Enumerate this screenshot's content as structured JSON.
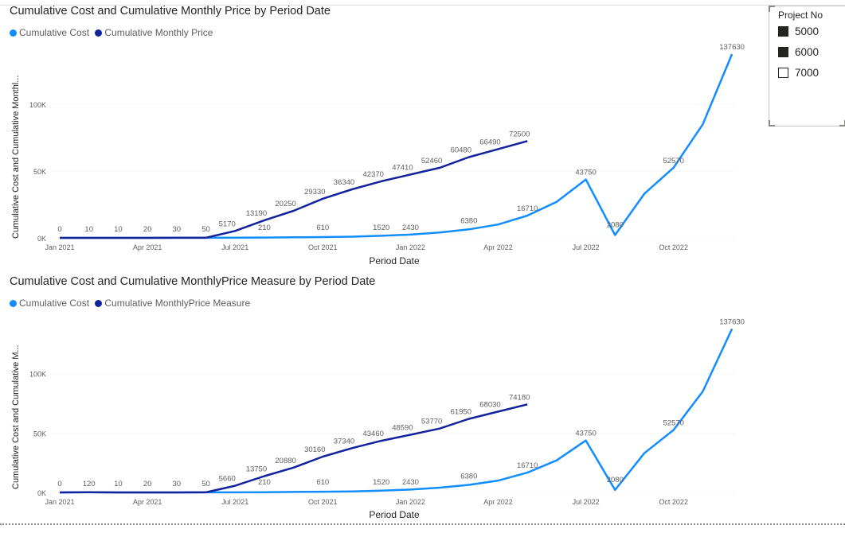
{
  "chart_data": [
    {
      "type": "line",
      "title": "Cumulative Cost and Cumulative Monthly Price by Period Date",
      "xlabel": "Period Date",
      "ylabel": "Cumulative Cost and Cumulative Monthl...",
      "x_tick_labels": [
        "Jan 2021",
        "Apr 2021",
        "Jul 2021",
        "Oct 2021",
        "Jan 2022",
        "Apr 2022",
        "Jul 2022",
        "Oct 2022"
      ],
      "y_tick_labels": [
        "0K",
        "50K",
        "100K"
      ],
      "ylim": [
        0,
        140000
      ],
      "grid": true,
      "legend_position": "top-left",
      "series": [
        {
          "name": "Cumulative Cost",
          "color": "#118DFF",
          "points": [
            {
              "x": "2021-01",
              "y": 0
            },
            {
              "x": "2021-02",
              "y": 10
            },
            {
              "x": "2021-03",
              "y": 10
            },
            {
              "x": "2021-04",
              "y": 20
            },
            {
              "x": "2021-05",
              "y": 30
            },
            {
              "x": "2021-06",
              "y": 50
            },
            {
              "x": "2021-07",
              "y": 100
            },
            {
              "x": "2021-08",
              "y": 210
            },
            {
              "x": "2021-09",
              "y": 400
            },
            {
              "x": "2021-10",
              "y": 610
            },
            {
              "x": "2021-11",
              "y": 900
            },
            {
              "x": "2021-12",
              "y": 1520
            },
            {
              "x": "2022-01",
              "y": 2430
            },
            {
              "x": "2022-02",
              "y": 4000
            },
            {
              "x": "2022-03",
              "y": 6380
            },
            {
              "x": "2022-04",
              "y": 10000
            },
            {
              "x": "2022-05",
              "y": 16710
            },
            {
              "x": "2022-06",
              "y": 27000
            },
            {
              "x": "2022-07",
              "y": 43750
            },
            {
              "x": "2022-08",
              "y": 2080
            },
            {
              "x": "2022-09",
              "y": 33000
            },
            {
              "x": "2022-10",
              "y": 52570
            },
            {
              "x": "2022-11",
              "y": 85000
            },
            {
              "x": "2022-12",
              "y": 137630
            }
          ],
          "data_labels": [
            {
              "x": "2021-01",
              "y": 0
            },
            {
              "x": "2021-02",
              "y": 10
            },
            {
              "x": "2021-03",
              "y": 10
            },
            {
              "x": "2021-04",
              "y": 20
            },
            {
              "x": "2021-05",
              "y": 30
            },
            {
              "x": "2021-06",
              "y": 50
            },
            {
              "x": "2021-08",
              "y": 210
            },
            {
              "x": "2021-10",
              "y": 610
            },
            {
              "x": "2021-12",
              "y": 1520
            },
            {
              "x": "2022-01",
              "y": 2430
            },
            {
              "x": "2022-03",
              "y": 6380
            },
            {
              "x": "2022-05",
              "y": 16710
            },
            {
              "x": "2022-07",
              "y": 43750
            },
            {
              "x": "2022-08",
              "y": 2080
            },
            {
              "x": "2022-10",
              "y": 52570
            },
            {
              "x": "2022-12",
              "y": 137630
            }
          ]
        },
        {
          "name": "Cumulative Monthly Price",
          "color": "#12239E",
          "points": [
            {
              "x": "2021-01",
              "y": 0
            },
            {
              "x": "2021-02",
              "y": 10
            },
            {
              "x": "2021-03",
              "y": 10
            },
            {
              "x": "2021-04",
              "y": 20
            },
            {
              "x": "2021-05",
              "y": 30
            },
            {
              "x": "2021-06",
              "y": 50
            },
            {
              "x": "2021-07",
              "y": 5170
            },
            {
              "x": "2021-08",
              "y": 13190
            },
            {
              "x": "2021-09",
              "y": 20250
            },
            {
              "x": "2021-10",
              "y": 29330
            },
            {
              "x": "2021-11",
              "y": 36340
            },
            {
              "x": "2021-12",
              "y": 42370
            },
            {
              "x": "2022-01",
              "y": 47410
            },
            {
              "x": "2022-02",
              "y": 52460
            },
            {
              "x": "2022-03",
              "y": 60480
            },
            {
              "x": "2022-04",
              "y": 66490
            },
            {
              "x": "2022-05",
              "y": 72500
            }
          ],
          "data_labels": [
            {
              "x": "2021-07",
              "y": 5170
            },
            {
              "x": "2021-08",
              "y": 13190
            },
            {
              "x": "2021-09",
              "y": 20250
            },
            {
              "x": "2021-10",
              "y": 29330
            },
            {
              "x": "2021-11",
              "y": 36340
            },
            {
              "x": "2021-12",
              "y": 42370
            },
            {
              "x": "2022-01",
              "y": 47410
            },
            {
              "x": "2022-02",
              "y": 52460
            },
            {
              "x": "2022-03",
              "y": 60480
            },
            {
              "x": "2022-04",
              "y": 66490
            },
            {
              "x": "2022-05",
              "y": 72500
            }
          ]
        }
      ]
    },
    {
      "type": "line",
      "title": "Cumulative Cost and Cumulative MonthlyPrice Measure by Period Date",
      "xlabel": "Period Date",
      "ylabel": "Cumulative Cost and Cumulative M...",
      "x_tick_labels": [
        "Jan 2021",
        "Apr 2021",
        "Jul 2021",
        "Oct 2021",
        "Jan 2022",
        "Apr 2022",
        "Jul 2022",
        "Oct 2022"
      ],
      "y_tick_labels": [
        "0K",
        "50K",
        "100K"
      ],
      "ylim": [
        0,
        140000
      ],
      "grid": true,
      "legend_position": "top-left",
      "series": [
        {
          "name": "Cumulative Cost",
          "color": "#118DFF",
          "points": [
            {
              "x": "2021-01",
              "y": 0
            },
            {
              "x": "2021-02",
              "y": 120
            },
            {
              "x": "2021-03",
              "y": 10
            },
            {
              "x": "2021-04",
              "y": 20
            },
            {
              "x": "2021-05",
              "y": 30
            },
            {
              "x": "2021-06",
              "y": 50
            },
            {
              "x": "2021-07",
              "y": 100
            },
            {
              "x": "2021-08",
              "y": 210
            },
            {
              "x": "2021-09",
              "y": 400
            },
            {
              "x": "2021-10",
              "y": 610
            },
            {
              "x": "2021-11",
              "y": 900
            },
            {
              "x": "2021-12",
              "y": 1520
            },
            {
              "x": "2022-01",
              "y": 2430
            },
            {
              "x": "2022-02",
              "y": 4000
            },
            {
              "x": "2022-03",
              "y": 6380
            },
            {
              "x": "2022-04",
              "y": 10000
            },
            {
              "x": "2022-05",
              "y": 16710
            },
            {
              "x": "2022-06",
              "y": 27000
            },
            {
              "x": "2022-07",
              "y": 43750
            },
            {
              "x": "2022-08",
              "y": 2080
            },
            {
              "x": "2022-09",
              "y": 33000
            },
            {
              "x": "2022-10",
              "y": 52570
            },
            {
              "x": "2022-11",
              "y": 85000
            },
            {
              "x": "2022-12",
              "y": 137630
            }
          ],
          "data_labels": [
            {
              "x": "2021-01",
              "y": 0
            },
            {
              "x": "2021-02",
              "y": 120
            },
            {
              "x": "2021-03",
              "y": 10
            },
            {
              "x": "2021-04",
              "y": 20
            },
            {
              "x": "2021-05",
              "y": 30
            },
            {
              "x": "2021-06",
              "y": 50
            },
            {
              "x": "2021-08",
              "y": 210
            },
            {
              "x": "2021-10",
              "y": 610
            },
            {
              "x": "2021-12",
              "y": 1520
            },
            {
              "x": "2022-01",
              "y": 2430
            },
            {
              "x": "2022-03",
              "y": 6380
            },
            {
              "x": "2022-05",
              "y": 16710
            },
            {
              "x": "2022-07",
              "y": 43750
            },
            {
              "x": "2022-08",
              "y": 2080
            },
            {
              "x": "2022-10",
              "y": 52570
            },
            {
              "x": "2022-12",
              "y": 137630
            }
          ]
        },
        {
          "name": "Cumulative MonthlyPrice Measure",
          "color": "#12239E",
          "points": [
            {
              "x": "2021-01",
              "y": 0
            },
            {
              "x": "2021-02",
              "y": 120
            },
            {
              "x": "2021-03",
              "y": 10
            },
            {
              "x": "2021-04",
              "y": 20
            },
            {
              "x": "2021-05",
              "y": 30
            },
            {
              "x": "2021-06",
              "y": 50
            },
            {
              "x": "2021-07",
              "y": 5660
            },
            {
              "x": "2021-08",
              "y": 13750
            },
            {
              "x": "2021-09",
              "y": 20880
            },
            {
              "x": "2021-10",
              "y": 30160
            },
            {
              "x": "2021-11",
              "y": 37340
            },
            {
              "x": "2021-12",
              "y": 43460
            },
            {
              "x": "2022-01",
              "y": 48590
            },
            {
              "x": "2022-02",
              "y": 53770
            },
            {
              "x": "2022-03",
              "y": 61950
            },
            {
              "x": "2022-04",
              "y": 68030
            },
            {
              "x": "2022-05",
              "y": 74180
            }
          ],
          "data_labels": [
            {
              "x": "2021-07",
              "y": 5660
            },
            {
              "x": "2021-08",
              "y": 13750
            },
            {
              "x": "2021-09",
              "y": 20880
            },
            {
              "x": "2021-10",
              "y": 30160
            },
            {
              "x": "2021-11",
              "y": 37340
            },
            {
              "x": "2021-12",
              "y": 43460
            },
            {
              "x": "2022-01",
              "y": 48590
            },
            {
              "x": "2022-02",
              "y": 53770
            },
            {
              "x": "2022-03",
              "y": 61950
            },
            {
              "x": "2022-04",
              "y": 68030
            },
            {
              "x": "2022-05",
              "y": 74180
            }
          ]
        }
      ]
    }
  ],
  "slicer": {
    "title": "Project No",
    "items": [
      {
        "label": "5000",
        "checked": true
      },
      {
        "label": "6000",
        "checked": true
      },
      {
        "label": "7000",
        "checked": false
      }
    ]
  }
}
